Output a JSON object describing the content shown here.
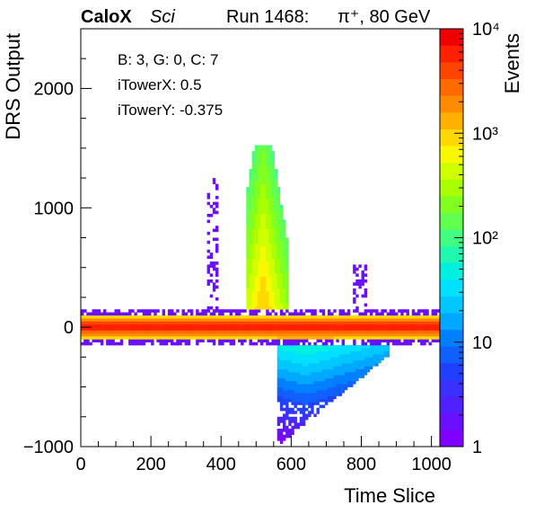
{
  "chart_data": {
    "type": "heatmap",
    "header": {
      "brand": "CaloX",
      "subtitle": "Sci",
      "run": "Run 1468:",
      "beam": "π⁺, 80 GeV"
    },
    "xlabel": "Time Slice",
    "ylabel": "DRS Output",
    "zlabel": "Events",
    "xlim": [
      0,
      1024
    ],
    "ylim": [
      -1000,
      2500
    ],
    "zlim": [
      1,
      10000
    ],
    "z_scale": "log",
    "x_ticks": [
      0,
      200,
      400,
      600,
      800,
      1000
    ],
    "x_tick_labels": [
      "0",
      "200",
      "400",
      "600",
      "800",
      "1000"
    ],
    "y_ticks": [
      -1000,
      0,
      1000,
      2000
    ],
    "y_tick_labels": [
      "−1000",
      "0",
      "1000",
      "2000"
    ],
    "z_tick_labels": [
      "1",
      "10",
      "10²",
      "10³",
      "10⁴"
    ],
    "annotation": [
      "B: 3, G: 0, C: 7",
      "iTowerX: 0.5",
      "iTowerY: -0.375"
    ],
    "grid": false,
    "palette": [
      "#7f00ff",
      "#6a10ff",
      "#5020ff",
      "#3a30ff",
      "#2040ff",
      "#1060ff",
      "#0080ff",
      "#00a8ff",
      "#00c8ff",
      "#00e0ff",
      "#00f0e0",
      "#20f8b0",
      "#40ff80",
      "#60ff50",
      "#80ff20",
      "#a8ff00",
      "#d0ff00",
      "#f8f800",
      "#ffd800",
      "#ffb000",
      "#ff8c00",
      "#ff6a00",
      "#ff4400",
      "#ff2000",
      "#f00000"
    ],
    "regions": [
      {
        "name": "baseline",
        "x": [
          0,
          1024
        ],
        "y": [
          -150,
          150
        ],
        "level": "max"
      },
      {
        "name": "pulse-rise",
        "x": [
          470,
          580
        ],
        "y": [
          150,
          1500
        ],
        "level": "high"
      },
      {
        "name": "undershoot",
        "x": [
          550,
          900
        ],
        "y": [
          -1000,
          -150
        ],
        "level": "mid"
      },
      {
        "name": "spike-1",
        "x": [
          360,
          390
        ],
        "y": [
          200,
          1250
        ],
        "level": "low"
      },
      {
        "name": "spike-2",
        "x": [
          780,
          820
        ],
        "y": [
          200,
          550
        ],
        "level": "low"
      }
    ]
  }
}
